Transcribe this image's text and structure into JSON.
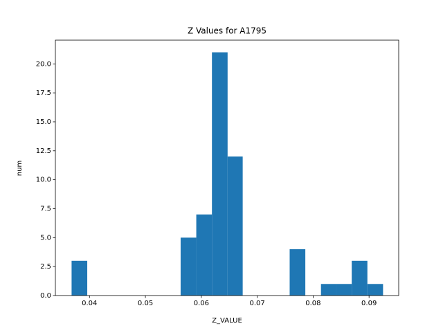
{
  "chart_data": {
    "type": "histogram",
    "title": "Z Values for A1795",
    "xlabel": "Z_VALUE",
    "ylabel": "num",
    "bins": [
      0.0368,
      0.0396,
      0.0424,
      0.0452,
      0.0479,
      0.0507,
      0.0535,
      0.0563,
      0.0591,
      0.0619,
      0.0647,
      0.0674,
      0.0702,
      0.073,
      0.0758,
      0.0786,
      0.0814,
      0.0841,
      0.0869,
      0.0897,
      0.0925
    ],
    "counts": [
      3,
      0,
      0,
      0,
      0,
      0,
      0,
      5,
      7,
      21,
      12,
      0,
      0,
      0,
      4,
      0,
      1,
      1,
      3,
      1
    ],
    "color": "#1f77b4",
    "xlim": [
      0.0339,
      0.0953
    ],
    "xticks": [
      0.04,
      0.05,
      0.06,
      0.07,
      0.08,
      0.09
    ],
    "ylim": [
      0,
      22.05
    ],
    "yticks": [
      {
        "value": 0,
        "label": "0.0"
      },
      {
        "value": 2.5,
        "label": "2.5"
      },
      {
        "value": 5,
        "label": "5.0"
      },
      {
        "value": 7.5,
        "label": "7.5"
      },
      {
        "value": 10,
        "label": "10.0"
      },
      {
        "value": 12.5,
        "label": "12.5"
      },
      {
        "value": 15,
        "label": "15.0"
      },
      {
        "value": 17.5,
        "label": "17.5"
      },
      {
        "value": 20,
        "label": "20.0"
      }
    ]
  }
}
